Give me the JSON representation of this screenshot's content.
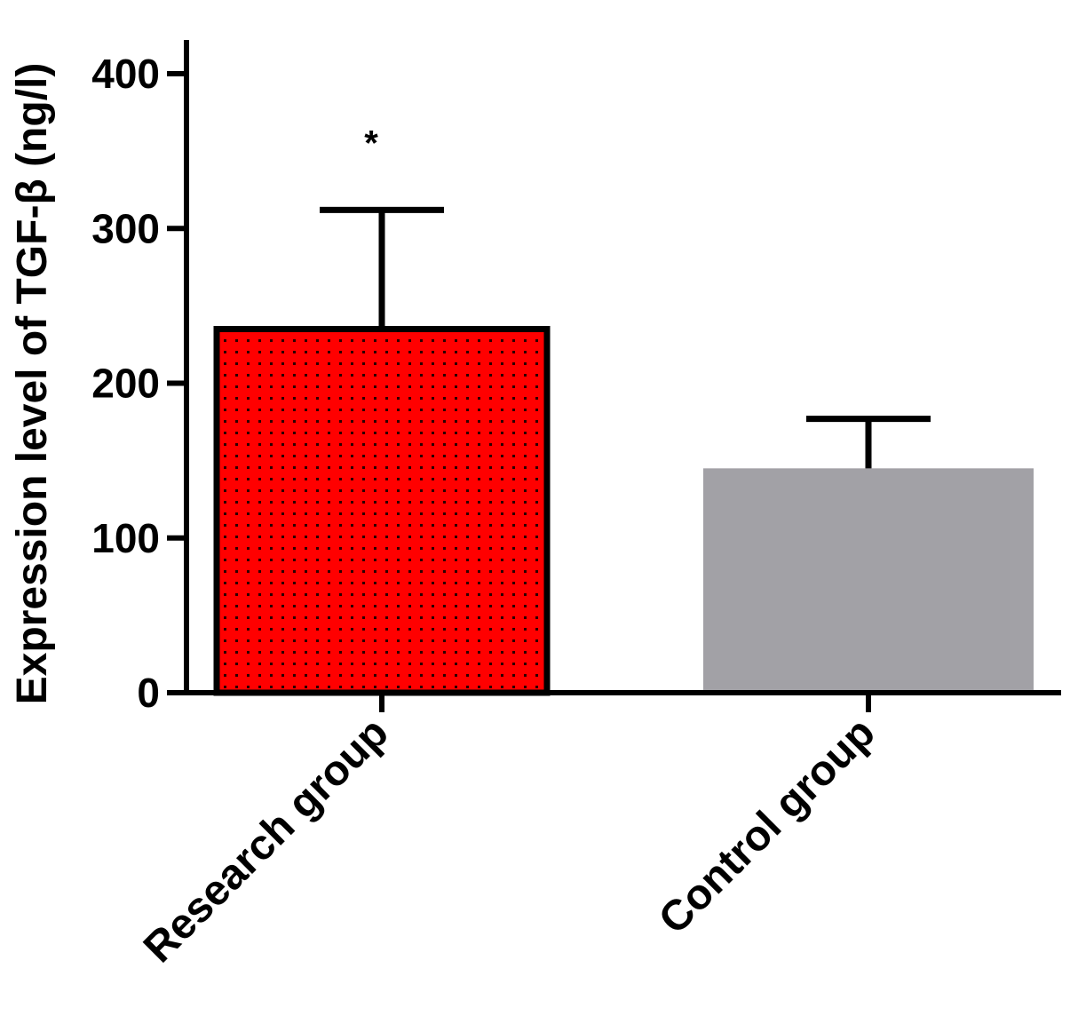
{
  "chart_data": {
    "type": "bar",
    "title": "",
    "xlabel": "",
    "ylabel": "Expression level of TGF-β (ng/l)",
    "ylim": [
      0,
      400
    ],
    "yticks": [
      0,
      100,
      200,
      300,
      400
    ],
    "ytick_labels": [
      "0",
      "100",
      "200",
      "300",
      "400"
    ],
    "grid": false,
    "legend": "none",
    "categories": [
      "Research group",
      "Control group"
    ],
    "values": [
      235,
      145
    ],
    "error_upper": [
      312,
      177
    ],
    "annotations": [
      "*",
      ""
    ],
    "colors": [
      "#ff0000",
      "#a2a1a6"
    ],
    "patterns": [
      "dots",
      "none"
    ],
    "outlined": [
      true,
      false
    ]
  }
}
